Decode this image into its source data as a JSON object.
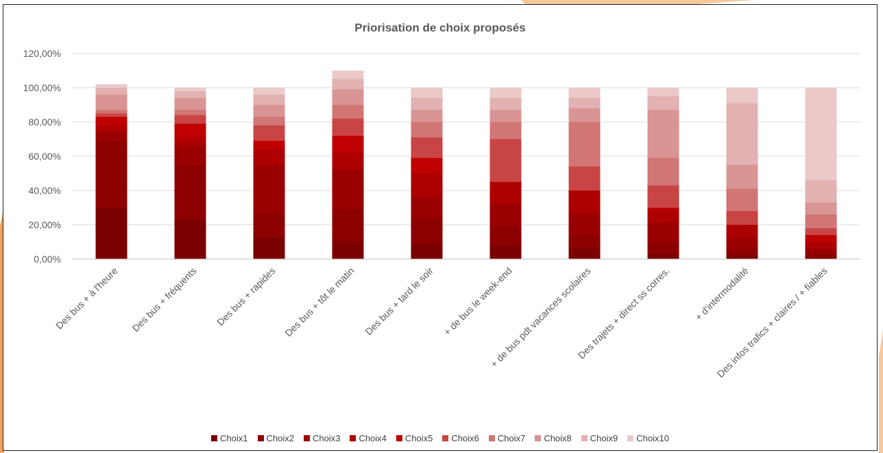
{
  "chart_data": {
    "type": "bar",
    "stacked": true,
    "title": "Priorisation de choix proposés",
    "xlabel": "",
    "ylabel": "",
    "ylim": [
      0,
      1.2
    ],
    "yticks": [
      "0,00%",
      "20,00%",
      "40,00%",
      "60,00%",
      "80,00%",
      "100,00%",
      "120,00%"
    ],
    "grid": true,
    "legend_position": "bottom",
    "categories": [
      "Des bus + à l'heure",
      "Des bus + fréquents",
      "Des bus + rapides",
      "Des bus + tôt le matin",
      "Des bus + tard le soir",
      "+ de bus le week-end",
      "+ de bus pdt vacances scolaires",
      "Des trajets + direct ss corres.",
      "+ d'intermodalité",
      "Des infos trafics + claires / + fiables"
    ],
    "series": [
      {
        "name": "Choix1",
        "color": "#7b0000",
        "values": [
          0.3,
          0.23,
          0.13,
          0.1,
          0.09,
          0.08,
          0.06,
          0.03,
          0.02,
          0.01
        ]
      },
      {
        "name": "Choix2",
        "color": "#8c0000",
        "values": [
          0.39,
          0.32,
          0.14,
          0.19,
          0.15,
          0.11,
          0.08,
          0.07,
          0.04,
          0.02
        ]
      },
      {
        "name": "Choix3",
        "color": "#9b0000",
        "values": [
          0.05,
          0.11,
          0.28,
          0.23,
          0.12,
          0.13,
          0.13,
          0.11,
          0.07,
          0.03
        ]
      },
      {
        "name": "Choix4",
        "color": "#ad0000",
        "values": [
          0.04,
          0.05,
          0.09,
          0.1,
          0.14,
          0.13,
          0.13,
          0.08,
          0.07,
          0.04
        ]
      },
      {
        "name": "Choix5",
        "color": "#c00000",
        "values": [
          0.05,
          0.08,
          0.05,
          0.1,
          0.09,
          0.0,
          0.0,
          0.01,
          0.0,
          0.04
        ]
      },
      {
        "name": "Choix6",
        "color": "#c94545",
        "values": [
          0.02,
          0.05,
          0.09,
          0.1,
          0.12,
          0.25,
          0.14,
          0.13,
          0.08,
          0.04
        ]
      },
      {
        "name": "Choix7",
        "color": "#d17575",
        "values": [
          0.02,
          0.03,
          0.05,
          0.08,
          0.09,
          0.1,
          0.26,
          0.16,
          0.13,
          0.08
        ]
      },
      {
        "name": "Choix8",
        "color": "#d99494",
        "values": [
          0.09,
          0.07,
          0.07,
          0.09,
          0.07,
          0.07,
          0.08,
          0.28,
          0.14,
          0.07
        ]
      },
      {
        "name": "Choix9",
        "color": "#e2b1b1",
        "values": [
          0.04,
          0.04,
          0.06,
          0.06,
          0.07,
          0.07,
          0.06,
          0.08,
          0.36,
          0.13
        ]
      },
      {
        "name": "Choix10",
        "color": "#ebc9c9",
        "values": [
          0.02,
          0.02,
          0.04,
          0.05,
          0.06,
          0.06,
          0.06,
          0.05,
          0.09,
          0.54
        ]
      }
    ]
  }
}
